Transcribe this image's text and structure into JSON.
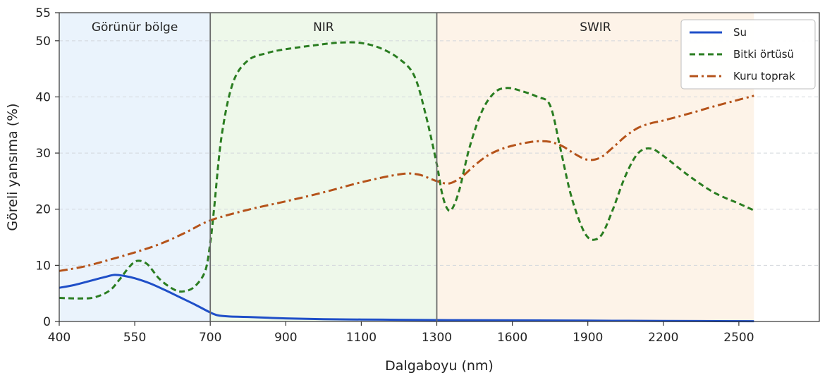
{
  "chart_data": {
    "type": "line",
    "title": "",
    "xlabel": "Dalgaboyu (nm)",
    "ylabel": "Göreli yansıma (%)",
    "xlim": [
      400,
      2560
    ],
    "ylim": [
      0,
      55
    ],
    "xticks": [
      400,
      550,
      700,
      900,
      1100,
      1300,
      1600,
      1900,
      2200,
      2500
    ],
    "yticks": [
      0,
      10,
      20,
      30,
      40,
      50,
      55
    ],
    "x_scale": "piecewise-linear (ticks equally spaced: 400-700 step 150, 700-1300 step 200, 1300-2500 step 300)",
    "grid": "horizontal dashed",
    "legend_position": "top-right",
    "regions": [
      {
        "label": "Görünür bölge",
        "from": 400,
        "to": 700,
        "color": "#eaf3fc"
      },
      {
        "label": "NIR",
        "from": 700,
        "to": 1300,
        "color": "#eef8ea"
      },
      {
        "label": "SWIR",
        "from": 1300,
        "to": 2560,
        "color": "#fdf3e8"
      }
    ],
    "series": [
      {
        "name": "Su",
        "color": "#1f4fc8",
        "style": "solid",
        "points": [
          [
            400,
            6.0
          ],
          [
            430,
            6.5
          ],
          [
            460,
            7.2
          ],
          [
            490,
            7.9
          ],
          [
            510,
            8.3
          ],
          [
            530,
            8.1
          ],
          [
            550,
            7.7
          ],
          [
            580,
            6.8
          ],
          [
            610,
            5.6
          ],
          [
            640,
            4.3
          ],
          [
            670,
            3.0
          ],
          [
            700,
            1.6
          ],
          [
            720,
            1.1
          ],
          [
            750,
            0.9
          ],
          [
            800,
            0.8
          ],
          [
            900,
            0.55
          ],
          [
            1000,
            0.4
          ],
          [
            1100,
            0.35
          ],
          [
            1200,
            0.3
          ],
          [
            1300,
            0.25
          ],
          [
            1600,
            0.2
          ],
          [
            1900,
            0.15
          ],
          [
            2200,
            0.1
          ],
          [
            2560,
            0.05
          ]
        ]
      },
      {
        "name": "Bitki örtüsü",
        "color": "#2a7d21",
        "style": "dashed",
        "points": [
          [
            400,
            4.2
          ],
          [
            440,
            4.1
          ],
          [
            470,
            4.3
          ],
          [
            500,
            5.5
          ],
          [
            520,
            7.5
          ],
          [
            540,
            9.8
          ],
          [
            555,
            10.8
          ],
          [
            575,
            10.2
          ],
          [
            600,
            7.5
          ],
          [
            630,
            5.6
          ],
          [
            650,
            5.4
          ],
          [
            670,
            6.3
          ],
          [
            690,
            9.0
          ],
          [
            700,
            14.0
          ],
          [
            710,
            20.0
          ],
          [
            730,
            33.0
          ],
          [
            760,
            42.5
          ],
          [
            800,
            46.5
          ],
          [
            850,
            47.8
          ],
          [
            900,
            48.5
          ],
          [
            1000,
            49.4
          ],
          [
            1050,
            49.7
          ],
          [
            1100,
            49.6
          ],
          [
            1150,
            48.7
          ],
          [
            1200,
            46.8
          ],
          [
            1240,
            43.8
          ],
          [
            1270,
            37.0
          ],
          [
            1300,
            28.0
          ],
          [
            1320,
            23.0
          ],
          [
            1340,
            20.2
          ],
          [
            1360,
            20.0
          ],
          [
            1390,
            23.5
          ],
          [
            1430,
            31.0
          ],
          [
            1480,
            37.5
          ],
          [
            1530,
            40.8
          ],
          [
            1580,
            41.6
          ],
          [
            1640,
            41.0
          ],
          [
            1700,
            40.0
          ],
          [
            1750,
            38.5
          ],
          [
            1790,
            31.0
          ],
          [
            1830,
            23.0
          ],
          [
            1870,
            17.5
          ],
          [
            1900,
            15.0
          ],
          [
            1930,
            14.6
          ],
          [
            1960,
            15.8
          ],
          [
            2000,
            20.0
          ],
          [
            2050,
            26.0
          ],
          [
            2100,
            30.0
          ],
          [
            2150,
            30.8
          ],
          [
            2200,
            29.5
          ],
          [
            2300,
            26.0
          ],
          [
            2400,
            23.0
          ],
          [
            2500,
            21.0
          ],
          [
            2560,
            19.8
          ]
        ]
      },
      {
        "name": "Kuru toprak",
        "color": "#b5531a",
        "style": "dashdot",
        "points": [
          [
            400,
            9.0
          ],
          [
            450,
            9.8
          ],
          [
            500,
            11.0
          ],
          [
            550,
            12.3
          ],
          [
            600,
            13.8
          ],
          [
            650,
            15.8
          ],
          [
            700,
            18.0
          ],
          [
            800,
            19.9
          ],
          [
            900,
            21.4
          ],
          [
            1000,
            23.0
          ],
          [
            1100,
            24.8
          ],
          [
            1200,
            26.2
          ],
          [
            1250,
            26.2
          ],
          [
            1300,
            25.0
          ],
          [
            1350,
            24.6
          ],
          [
            1400,
            25.8
          ],
          [
            1450,
            27.8
          ],
          [
            1500,
            29.5
          ],
          [
            1550,
            30.6
          ],
          [
            1600,
            31.3
          ],
          [
            1650,
            31.8
          ],
          [
            1700,
            32.1
          ],
          [
            1750,
            32.0
          ],
          [
            1800,
            31.2
          ],
          [
            1850,
            29.8
          ],
          [
            1900,
            28.8
          ],
          [
            1950,
            29.2
          ],
          [
            2000,
            31.0
          ],
          [
            2050,
            33.0
          ],
          [
            2100,
            34.5
          ],
          [
            2150,
            35.3
          ],
          [
            2200,
            35.8
          ],
          [
            2300,
            37.0
          ],
          [
            2400,
            38.3
          ],
          [
            2500,
            39.5
          ],
          [
            2560,
            40.2
          ]
        ]
      }
    ]
  }
}
